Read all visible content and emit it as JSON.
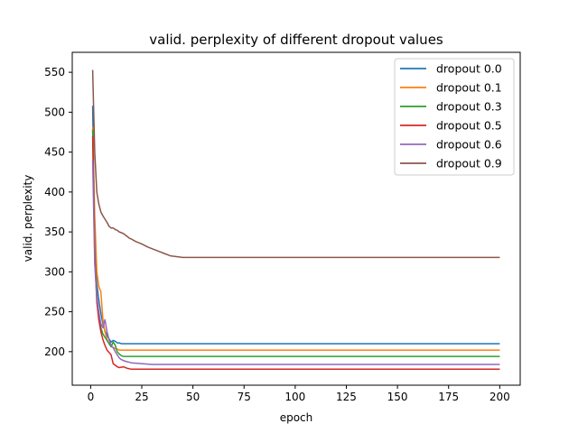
{
  "chart_data": {
    "type": "line",
    "title": "valid. perplexity of different dropout values",
    "xlabel": "epoch",
    "ylabel": "valid. perplexity",
    "xlim": [
      -9,
      210
    ],
    "ylim": [
      158,
      575
    ],
    "xticks": [
      0,
      25,
      50,
      75,
      100,
      125,
      150,
      175,
      200
    ],
    "yticks": [
      200,
      250,
      300,
      350,
      400,
      450,
      500,
      550
    ],
    "grid": false,
    "legend_position": "top-right",
    "series": [
      {
        "name": "dropout 0.0",
        "color": "#1f77b4",
        "points": [
          [
            1,
            508
          ],
          [
            2,
            330
          ],
          [
            3,
            285
          ],
          [
            4,
            265
          ],
          [
            5,
            248
          ],
          [
            6,
            235
          ],
          [
            7,
            226
          ],
          [
            8,
            220
          ],
          [
            9,
            216
          ],
          [
            10,
            212
          ],
          [
            11,
            214
          ],
          [
            12,
            213
          ],
          [
            13,
            211
          ],
          [
            14,
            211
          ],
          [
            15,
            210
          ],
          [
            200,
            210
          ]
        ]
      },
      {
        "name": "dropout 0.1",
        "color": "#ff7f0e",
        "points": [
          [
            1,
            482
          ],
          [
            2,
            370
          ],
          [
            3,
            300
          ],
          [
            4,
            282
          ],
          [
            5,
            275
          ],
          [
            6,
            240
          ],
          [
            7,
            225
          ],
          [
            8,
            215
          ],
          [
            9,
            210
          ],
          [
            10,
            207
          ],
          [
            11,
            205
          ],
          [
            12,
            204
          ],
          [
            13,
            203
          ],
          [
            14,
            202
          ],
          [
            15,
            202
          ],
          [
            200,
            202
          ]
        ]
      },
      {
        "name": "dropout 0.3",
        "color": "#2ca02c",
        "points": [
          [
            1,
            478
          ],
          [
            2,
            330
          ],
          [
            3,
            270
          ],
          [
            4,
            248
          ],
          [
            5,
            230
          ],
          [
            6,
            222
          ],
          [
            7,
            218
          ],
          [
            8,
            214
          ],
          [
            9,
            210
          ],
          [
            10,
            206
          ],
          [
            11,
            212
          ],
          [
            12,
            208
          ],
          [
            13,
            200
          ],
          [
            14,
            197
          ],
          [
            15,
            195
          ],
          [
            16,
            194
          ],
          [
            200,
            194
          ]
        ]
      },
      {
        "name": "dropout 0.5",
        "color": "#d62728",
        "points": [
          [
            1,
            470
          ],
          [
            2,
            320
          ],
          [
            3,
            262
          ],
          [
            4,
            240
          ],
          [
            5,
            225
          ],
          [
            6,
            215
          ],
          [
            7,
            208
          ],
          [
            8,
            202
          ],
          [
            9,
            199
          ],
          [
            10,
            196
          ],
          [
            11,
            185
          ],
          [
            12,
            183
          ],
          [
            13,
            181
          ],
          [
            14,
            180
          ],
          [
            16,
            181
          ],
          [
            18,
            179
          ],
          [
            20,
            178
          ],
          [
            200,
            178
          ]
        ]
      },
      {
        "name": "dropout 0.6",
        "color": "#9467bd",
        "points": [
          [
            1,
            440
          ],
          [
            2,
            310
          ],
          [
            3,
            268
          ],
          [
            4,
            250
          ],
          [
            5,
            235
          ],
          [
            6,
            230
          ],
          [
            7,
            240
          ],
          [
            8,
            225
          ],
          [
            9,
            215
          ],
          [
            10,
            208
          ],
          [
            11,
            205
          ],
          [
            12,
            200
          ],
          [
            13,
            196
          ],
          [
            14,
            192
          ],
          [
            15,
            190
          ],
          [
            17,
            188
          ],
          [
            20,
            186
          ],
          [
            25,
            185
          ],
          [
            30,
            184
          ],
          [
            200,
            184
          ]
        ]
      },
      {
        "name": "dropout 0.9",
        "color": "#8c564b",
        "points": [
          [
            1,
            553
          ],
          [
            2,
            450
          ],
          [
            3,
            400
          ],
          [
            4,
            385
          ],
          [
            5,
            375
          ],
          [
            6,
            370
          ],
          [
            7,
            366
          ],
          [
            8,
            362
          ],
          [
            9,
            357
          ],
          [
            10,
            355
          ],
          [
            11,
            355
          ],
          [
            12,
            353
          ],
          [
            13,
            352
          ],
          [
            14,
            350
          ],
          [
            15,
            349
          ],
          [
            16,
            348
          ],
          [
            17,
            346
          ],
          [
            18,
            344
          ],
          [
            19,
            342
          ],
          [
            20,
            341
          ],
          [
            22,
            338
          ],
          [
            25,
            335
          ],
          [
            28,
            331
          ],
          [
            30,
            329
          ],
          [
            33,
            326
          ],
          [
            36,
            323
          ],
          [
            39,
            320
          ],
          [
            42,
            319
          ],
          [
            45,
            318
          ],
          [
            200,
            318
          ]
        ]
      }
    ]
  }
}
